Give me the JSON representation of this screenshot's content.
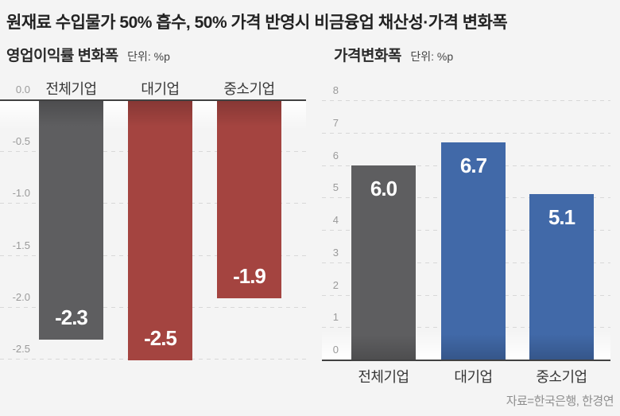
{
  "title": "원재료 수입물가 50% 흡수, 50% 가격 반영시 비금융업 채산성·가격 변화폭",
  "source": "자료=한국은행, 한경연",
  "colors": {
    "background": "#f4f4f4",
    "bar_gray": "#5e5e60",
    "bar_red": "#a44440",
    "bar_blue": "#4169a8",
    "axis_line": "#414141",
    "gridline": "#d8d8d8",
    "tick_label": "#9a9a9a",
    "value_label": "#ffffff"
  },
  "chart_data": [
    {
      "type": "bar",
      "title": "영업이익률 변화폭",
      "unit_label": "단위: %p",
      "categories": [
        "전체기업",
        "대기업",
        "중소기업"
      ],
      "values": [
        -2.3,
        -2.5,
        -1.9
      ],
      "data_labels": [
        "-2.3",
        "-2.5",
        "-1.9"
      ],
      "bar_colors": [
        "#5e5e60",
        "#a44440",
        "#a44440"
      ],
      "ylim": [
        -2.5,
        0
      ],
      "yticks": [
        0,
        -0.5,
        -1,
        -1.5,
        -2,
        -2.5
      ],
      "ytick_labels": [
        "0.0",
        "-0.5",
        "-1.0",
        "-1.5",
        "-2.0",
        "-2.5"
      ],
      "grid": true,
      "legend": false,
      "category_labels_position": "top",
      "xlabel": "",
      "ylabel": ""
    },
    {
      "type": "bar",
      "title": "가격변화폭",
      "unit_label": "단위: %p",
      "categories": [
        "전체기업",
        "대기업",
        "중소기업"
      ],
      "values": [
        6.0,
        6.7,
        5.1
      ],
      "data_labels": [
        "6.0",
        "6.7",
        "5.1"
      ],
      "bar_colors": [
        "#5e5e60",
        "#4169a8",
        "#4169a8"
      ],
      "ylim": [
        0,
        8
      ],
      "yticks": [
        8,
        7,
        6,
        5,
        4,
        3,
        2,
        1,
        0
      ],
      "ytick_labels": [
        "8",
        "7",
        "6",
        "5",
        "4",
        "3",
        "2",
        "1",
        "0"
      ],
      "grid": true,
      "legend": false,
      "category_labels_position": "bottom",
      "xlabel": "",
      "ylabel": ""
    }
  ]
}
